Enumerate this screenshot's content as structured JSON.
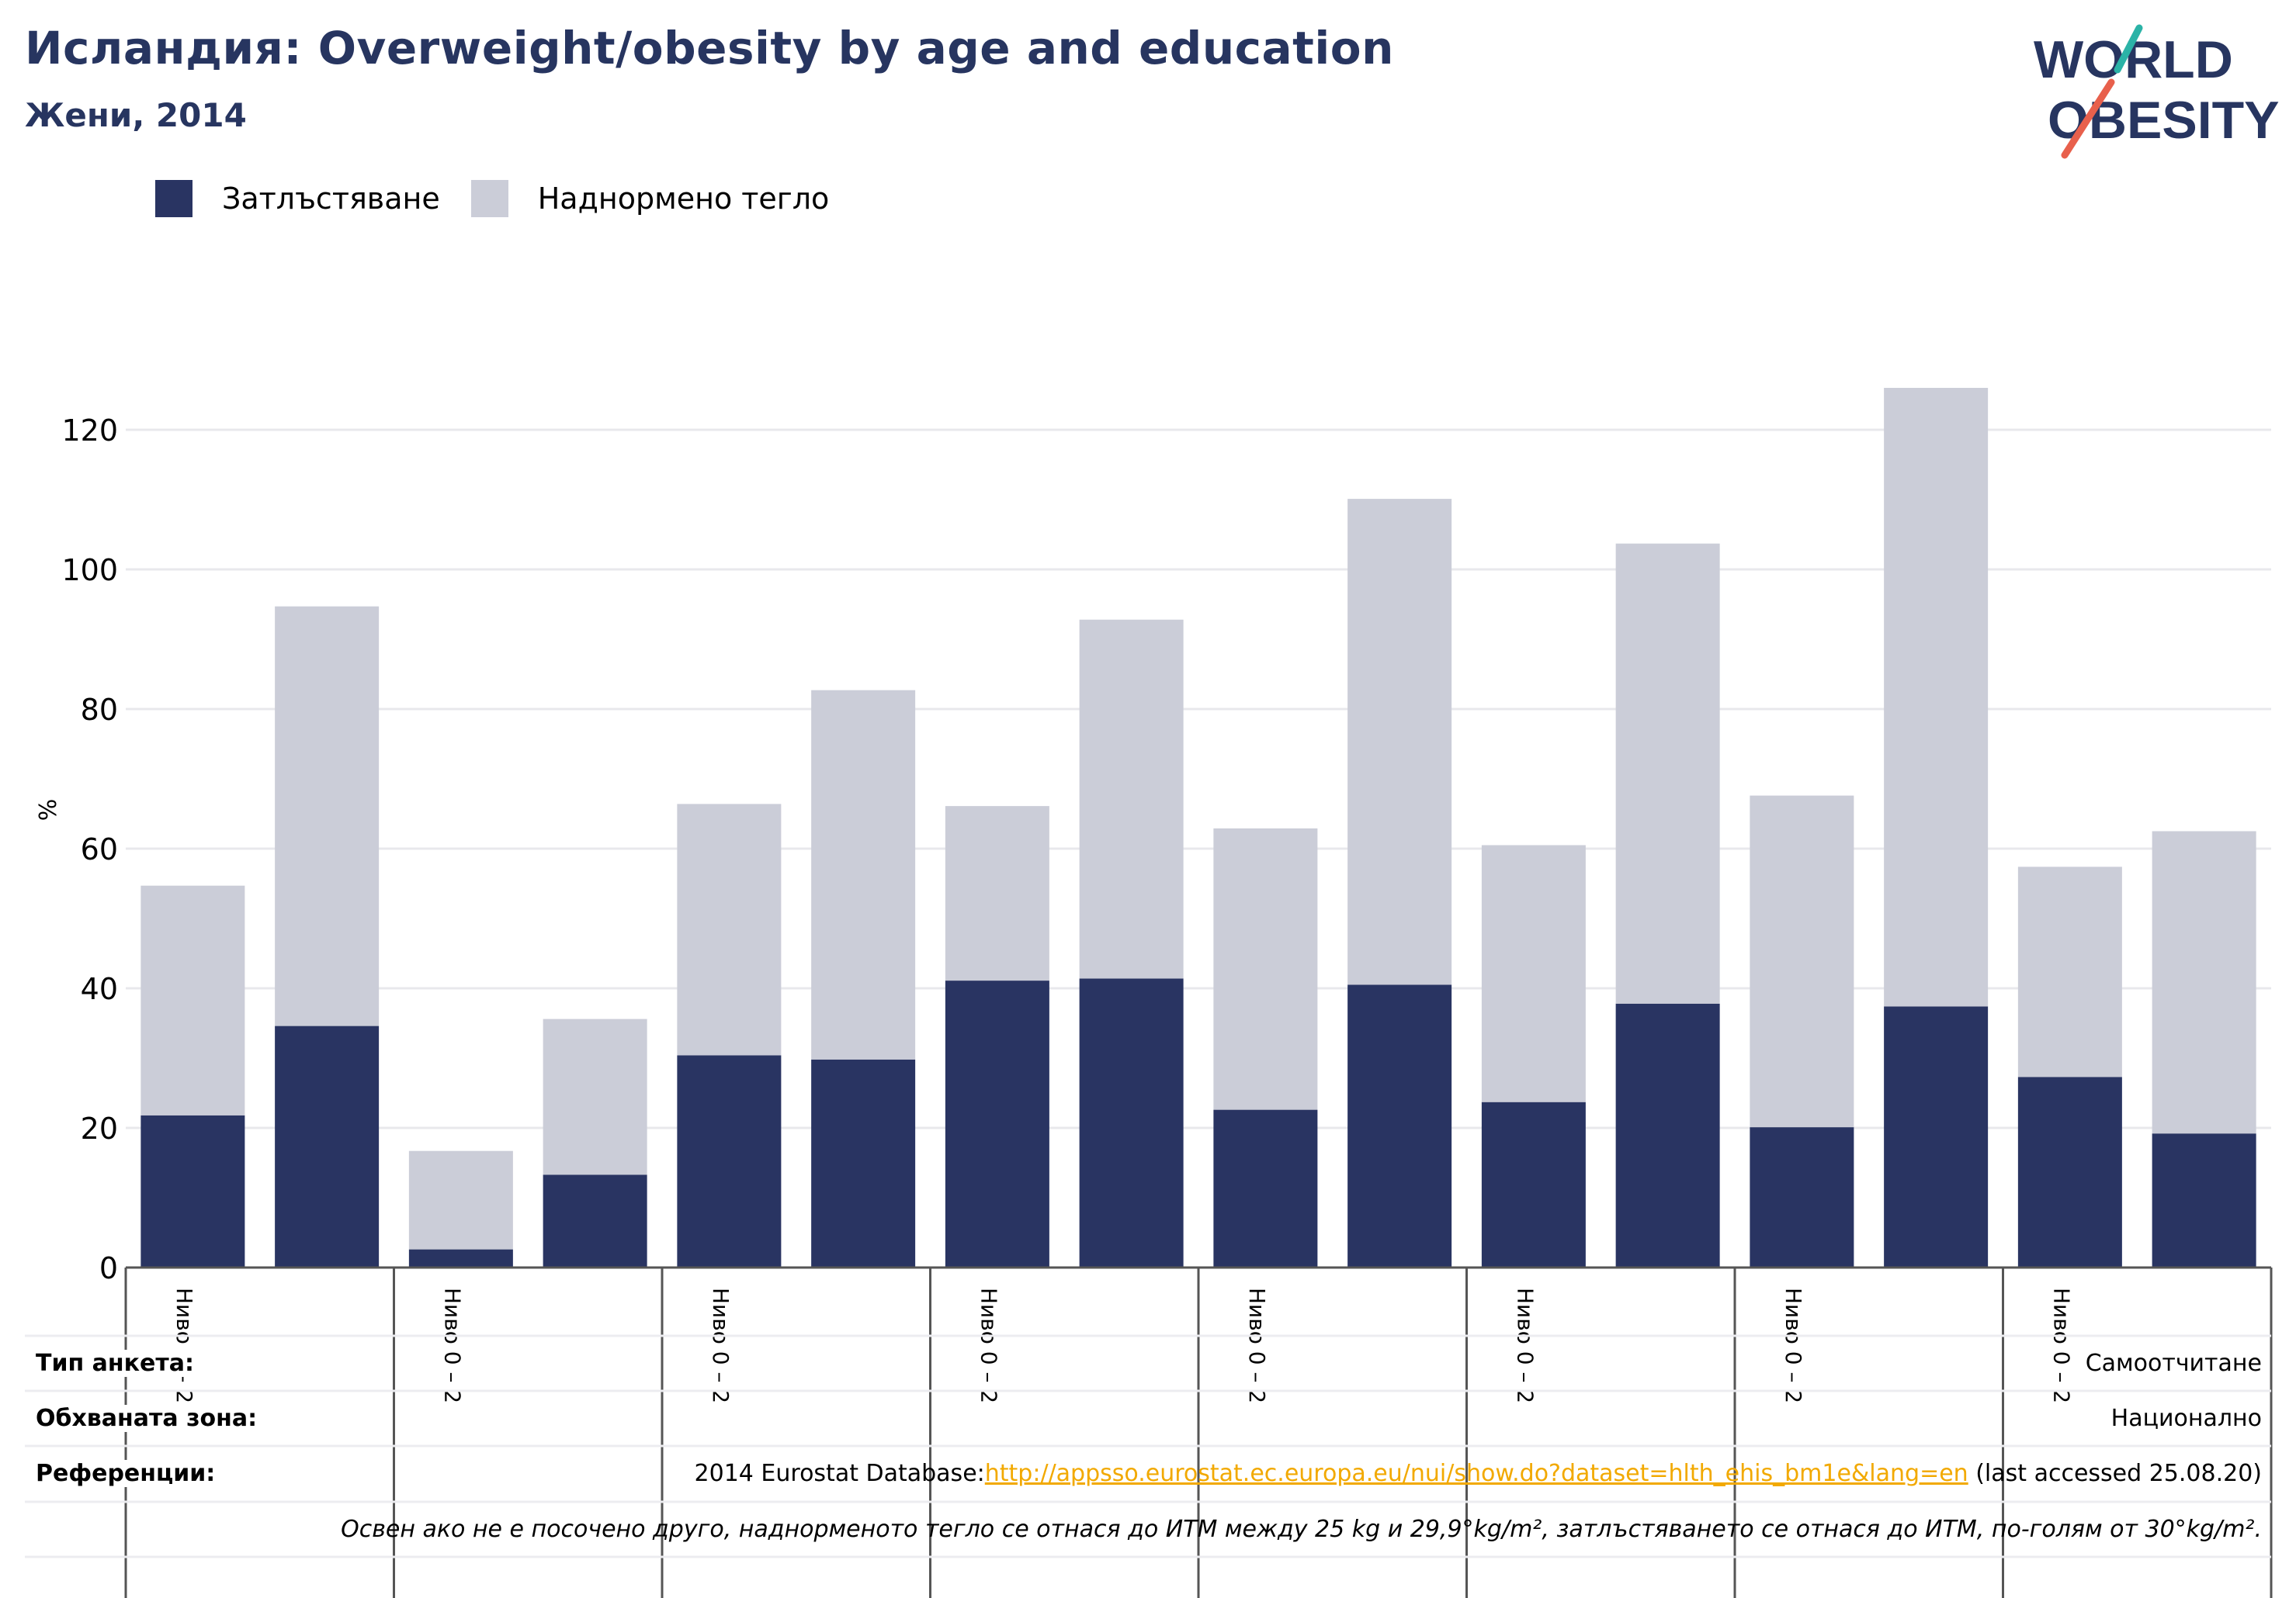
{
  "header": {
    "title": "Исландия: Overweight/obesity by age and education",
    "subtitle": "Жени, 2014"
  },
  "logo": {
    "line1": "WORLD",
    "line2": "OBESITY",
    "colors": {
      "text": "#273560",
      "slash_top": "#2bb3a7",
      "slash_bottom": "#e8604c"
    }
  },
  "legend": [
    {
      "label": "Затлъстяване",
      "color": "#293462"
    },
    {
      "label": "Наднормено тегло",
      "color": "#cbcdd8"
    }
  ],
  "chart_data": {
    "type": "bar",
    "stacked": true,
    "ylabel": "%",
    "ylim": [
      0,
      128
    ],
    "yticks": [
      0,
      20,
      40,
      60,
      80,
      100,
      120
    ],
    "grid": true,
    "legend_position": "top-left",
    "group_label": "Ниво 0 – 2",
    "groups": 8,
    "categories": [
      "Ниво 0 – 2",
      "",
      "Ниво 0 – 2",
      "",
      "Ниво 0 – 2",
      "",
      "Ниво 0 – 2",
      "",
      "Ниво 0 – 2",
      "",
      "Ниво 0 – 2",
      "",
      "Ниво 0 – 2",
      "",
      "Ниво 0 – 2",
      ""
    ],
    "series": [
      {
        "name": "Затлъстяване",
        "color": "#293462",
        "values": [
          21.8,
          34.6,
          2.6,
          13.3,
          30.4,
          29.8,
          41.1,
          41.4,
          22.6,
          40.5,
          23.7,
          37.8,
          20.1,
          37.4,
          27.3,
          19.2
        ]
      },
      {
        "name": "Наднормено тегло",
        "color": "#cbcdd8",
        "values": [
          32.9,
          60.1,
          14.1,
          22.3,
          36.0,
          52.9,
          25.0,
          51.4,
          40.3,
          69.6,
          36.8,
          65.9,
          47.5,
          88.6,
          30.1,
          43.3
        ]
      }
    ]
  },
  "info": {
    "survey_label": "Тип анкета:",
    "survey_value": "Самоотчитане",
    "area_label": "Обхваната зона:",
    "area_value": "Национално",
    "refs_label": "Референции:",
    "refs_prefix": "2014 Eurostat Database:",
    "refs_link": "http://appsso.eurostat.ec.europa.eu/nui/show.do?dataset=hlth_ehis_bm1e&lang=en",
    "refs_suffix": " (last accessed 25.08.20)",
    "note": "Освен ако не е посочено друго, наднорменото тегло се отнася до ИТМ между 25 kg и 29,9°kg/m², затлъстяването се отнася до ИТМ, по-голям от 30°kg/m²."
  }
}
